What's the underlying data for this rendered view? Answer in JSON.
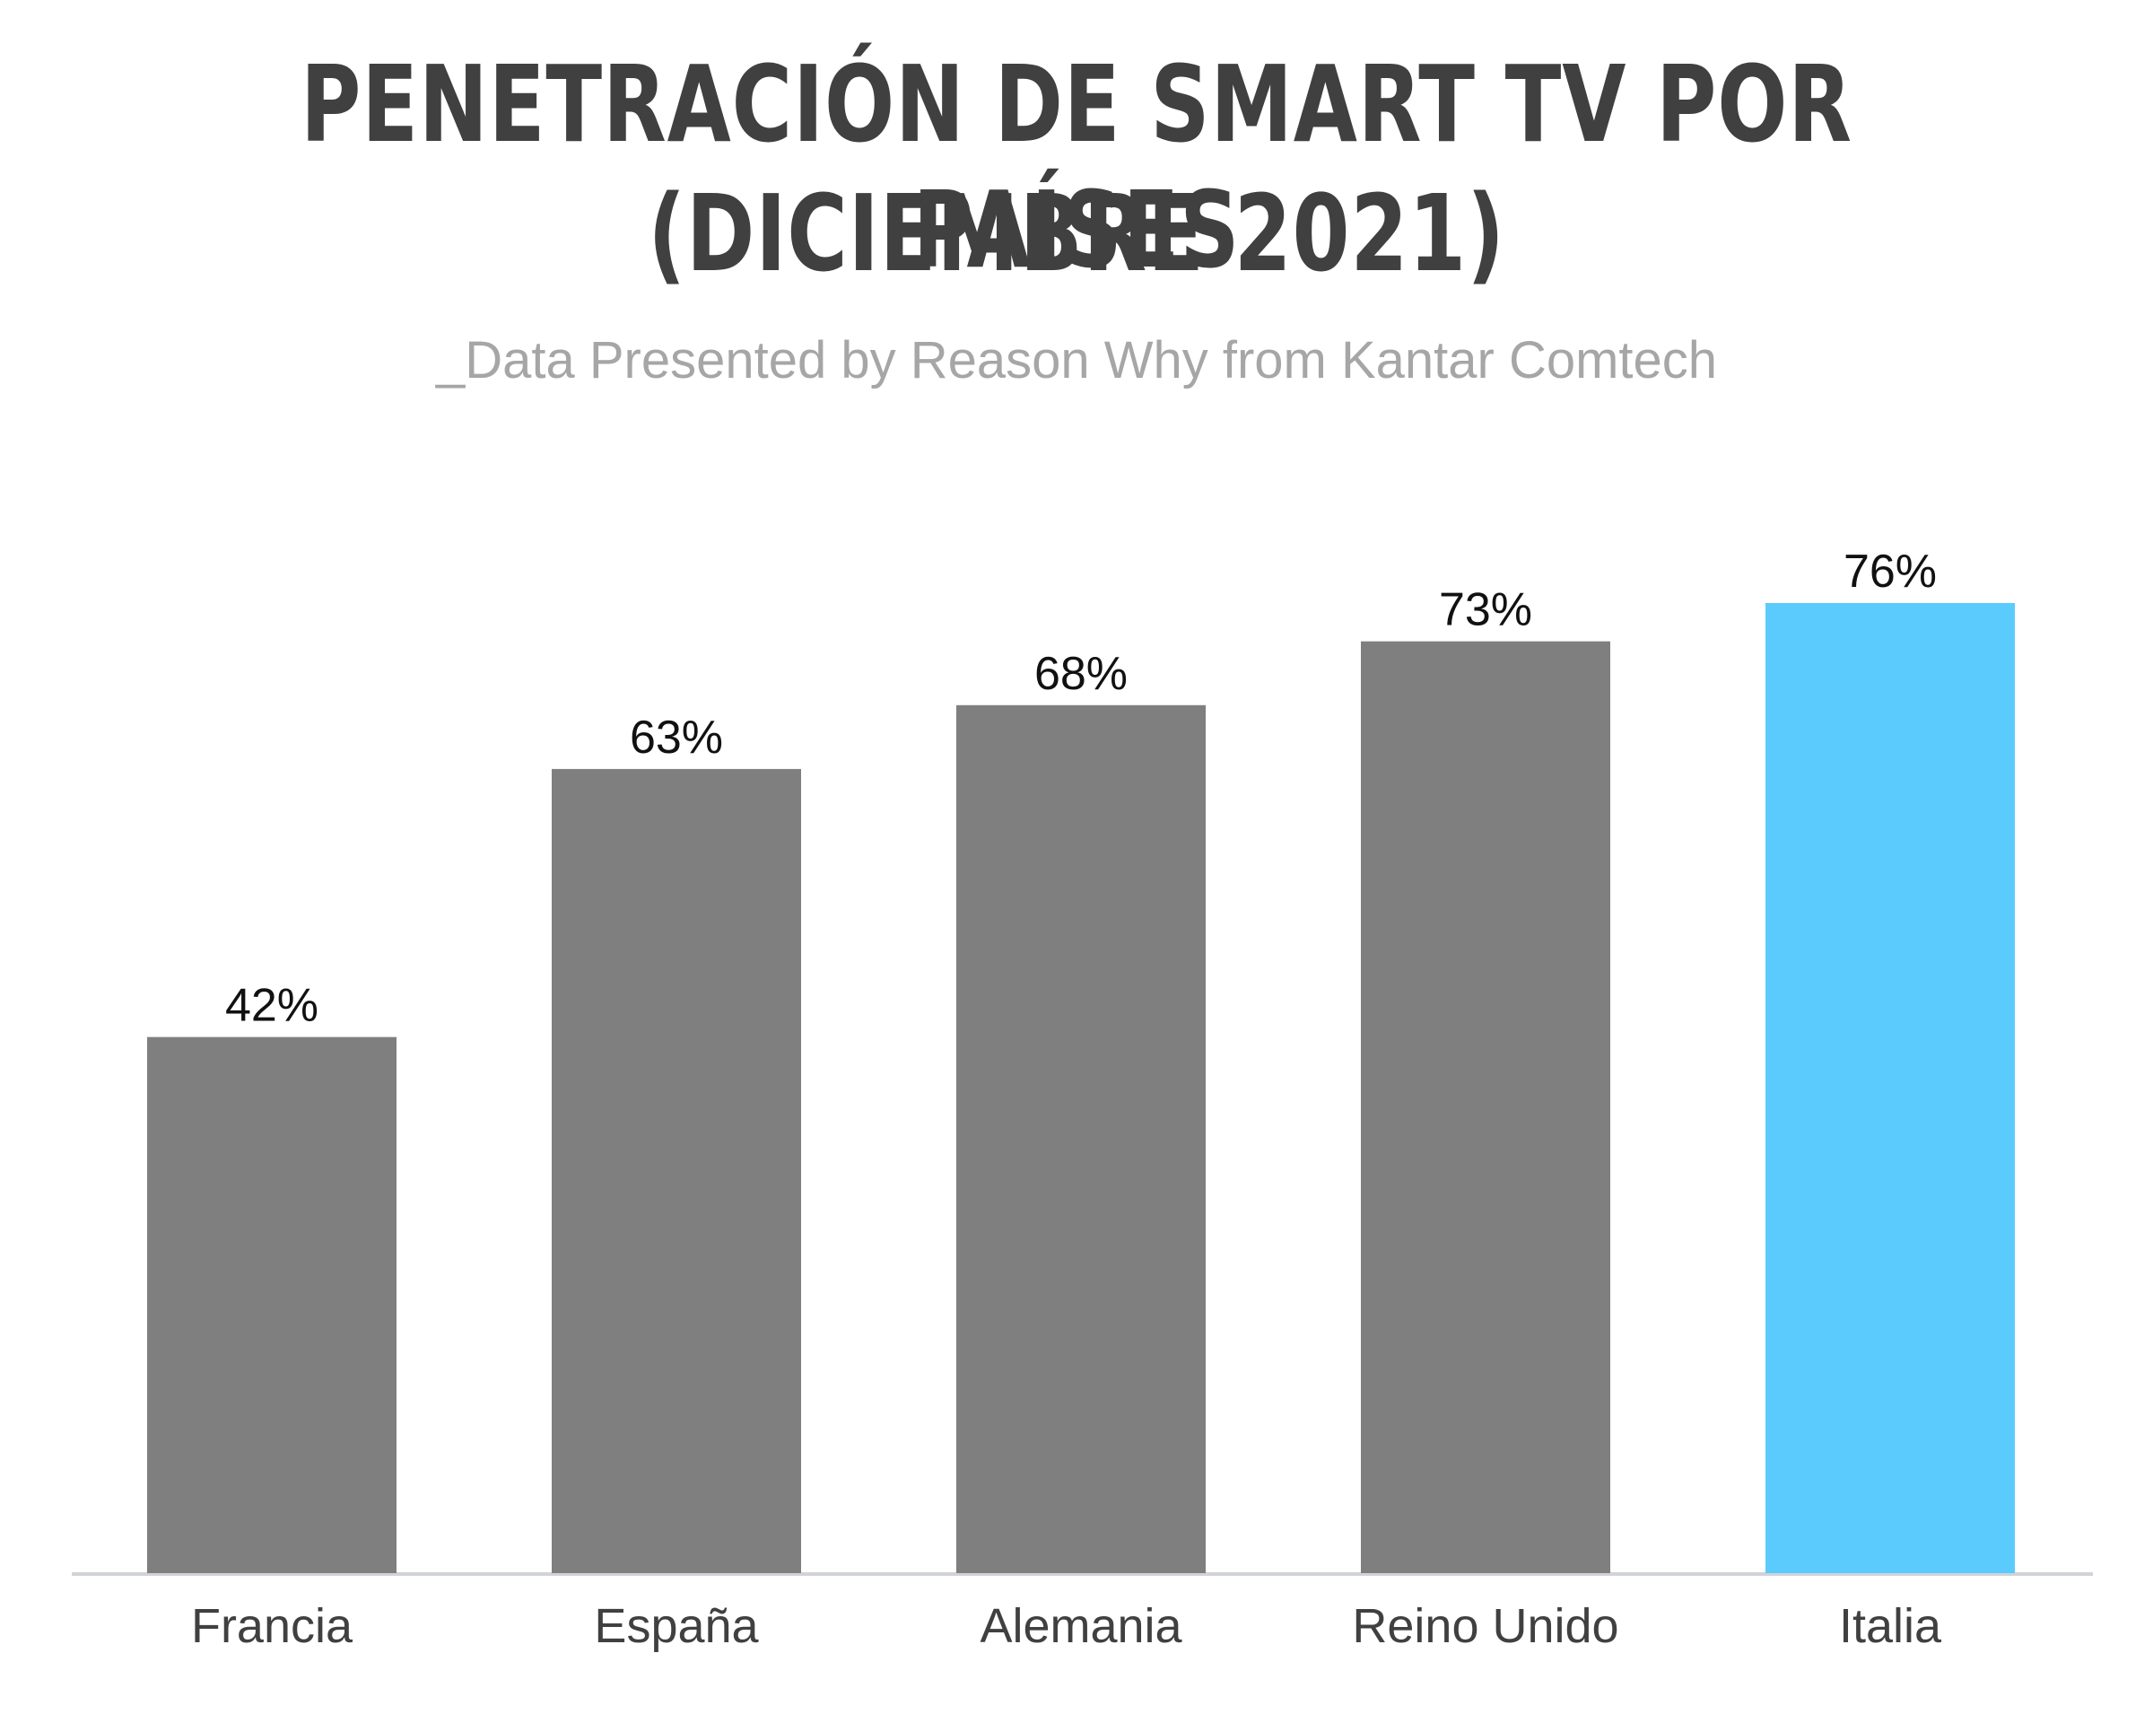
{
  "title_line1": "PENETRACIÓN DE SMART TV POR PAÍSES",
  "title_line2": "(DICIEMBRE 2021)",
  "subtitle": "_Data Presented by Reason Why from Kantar Comtech",
  "colors": {
    "default_bar": "#7f7f7f",
    "highlight_bar": "#5bcbfd",
    "baseline": "#d0d3d8",
    "title": "#404040",
    "subtitle": "#a6a6a6"
  },
  "chart_data": {
    "type": "bar",
    "title": "PENETRACIÓN DE SMART TV POR PAÍSES (DICIEMBRE 2021)",
    "subtitle": "_Data Presented by Reason Why from Kantar Comtech",
    "categories": [
      "Francia",
      "España",
      "Alemania",
      "Reino Unido",
      "Italia"
    ],
    "values": [
      42,
      63,
      68,
      73,
      76
    ],
    "value_labels": [
      "42%",
      "63%",
      "68%",
      "73%",
      "76%"
    ],
    "highlight_category": "Italia",
    "xlabel": "",
    "ylabel": "",
    "ylim": [
      0,
      76
    ],
    "grid": false,
    "legend": "none"
  }
}
